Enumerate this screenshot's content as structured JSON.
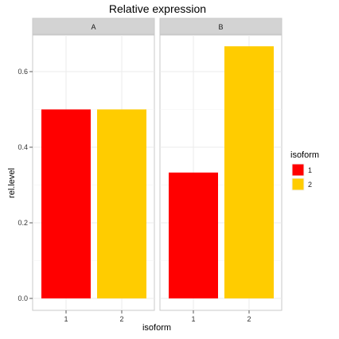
{
  "chart_data": {
    "type": "bar",
    "title": "Relative expression",
    "xlabel": "isoform",
    "ylabel": "rel.level",
    "ylim": [
      0,
      0.7
    ],
    "yticks": [
      0.0,
      0.2,
      0.4,
      0.6
    ],
    "ytick_labels": [
      "0.0",
      "0.2",
      "0.4",
      "0.6"
    ],
    "grid": true,
    "legend_position": "right",
    "legend_title": "isoform",
    "categories": [
      "1",
      "2"
    ],
    "colors": {
      "1": "#FF0000",
      "2": "#FFCC00"
    },
    "panels": [
      {
        "label": "A",
        "values": [
          0.5,
          0.5
        ]
      },
      {
        "label": "B",
        "values": [
          0.333,
          0.667
        ]
      }
    ]
  }
}
